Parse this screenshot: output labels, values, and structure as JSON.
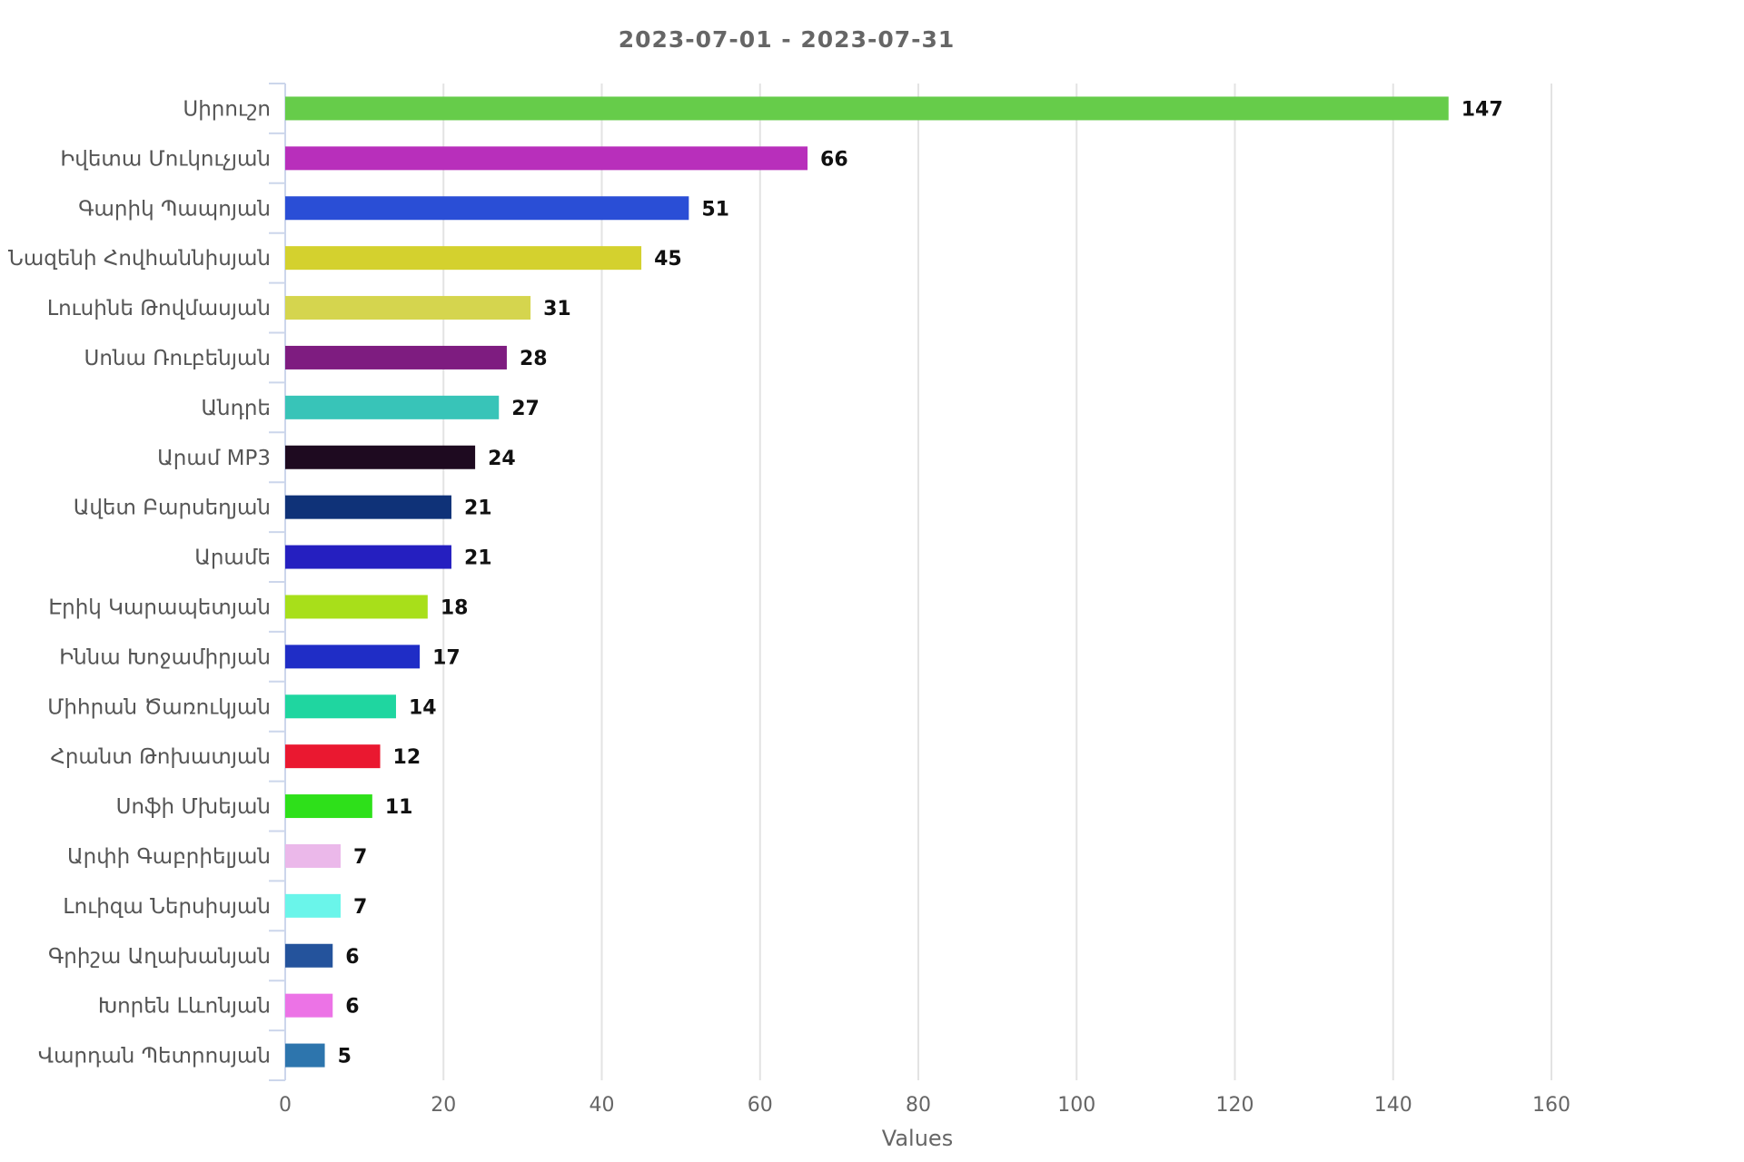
{
  "chart_data": {
    "type": "bar",
    "orientation": "horizontal",
    "title": "2023-07-01 - 2023-07-31",
    "xlabel": "Values",
    "ylabel": "",
    "xlim": [
      0,
      160
    ],
    "x_ticks": [
      0,
      20,
      40,
      60,
      80,
      100,
      120,
      140,
      160
    ],
    "grid": "vertical",
    "legend": "none",
    "data_labels": true,
    "categories": [
      "Սիրուշո",
      "Իվետա Մուկուչյան",
      "Գարիկ Պապոյան",
      "Նազենի Հովհաննիսյան",
      "Լուսինե Թովմասյան",
      "Սոնա Ռուբենյան",
      "Անդրե",
      "Արամ MP3",
      "Ավետ Բարսեղյան",
      "Արամե",
      "Էրիկ Կարապետյան",
      "Իննա Խոջամիրյան",
      "Միհրան Ծառուկյան",
      "Հրանտ Թոխատյան",
      "Սոֆի Մխեյան",
      "Արփի Գաբրիելյան",
      "Լուիզա Ներսիսյան",
      "Գրիշա Աղախանյան",
      "Խորեն Լևոնյան",
      "Վարդան Պետրոսյան"
    ],
    "values": [
      147,
      66,
      51,
      45,
      31,
      28,
      27,
      24,
      21,
      21,
      18,
      17,
      14,
      12,
      11,
      7,
      7,
      6,
      6,
      5
    ],
    "colors": [
      "#66cc4a",
      "#b82fbb",
      "#2a4ed6",
      "#d4d12e",
      "#d5d54e",
      "#7e1c80",
      "#38c4b8",
      "#1e0a20",
      "#0f3278",
      "#251fc0",
      "#a8df1a",
      "#1f2dc6",
      "#1fd6a0",
      "#ea1830",
      "#2ee01a",
      "#ebb8ea",
      "#6af5ea",
      "#24539c",
      "#ec73e6",
      "#2d75ad"
    ]
  }
}
